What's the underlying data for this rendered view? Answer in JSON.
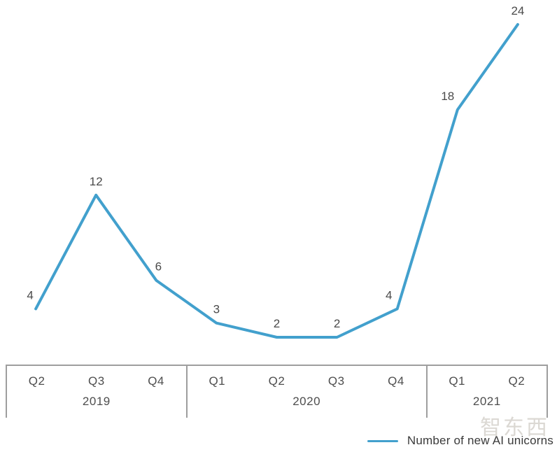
{
  "chart_data": {
    "type": "line",
    "title": "",
    "categories": [
      "Q2",
      "Q3",
      "Q4",
      "Q1",
      "Q2",
      "Q3",
      "Q4",
      "Q1",
      "Q2"
    ],
    "years": [
      {
        "label": "2019",
        "quarters": [
          "Q2",
          "Q3",
          "Q4"
        ]
      },
      {
        "label": "2020",
        "quarters": [
          "Q1",
          "Q2",
          "Q3",
          "Q4"
        ]
      },
      {
        "label": "2021",
        "quarters": [
          "Q1",
          "Q2"
        ]
      }
    ],
    "series": [
      {
        "name": "Number of new AI unicorns",
        "values": [
          4,
          12,
          6,
          3,
          2,
          2,
          4,
          18,
          24
        ]
      }
    ],
    "ylim": [
      0,
      26
    ],
    "grid": false,
    "data_labels_shown": true,
    "legend_position": "bottom-right",
    "line_color": "#42a0cd"
  },
  "colors": {
    "line": "#42a0cd",
    "point_label_text": "#4a4a4a",
    "axis_border": "#9e9e9e",
    "axis_text": "#4e4e4e",
    "legend_text": "#3a3a3a",
    "watermark": "#c9c4bd"
  },
  "legend": {
    "label": "Number of new AI unicorns"
  },
  "watermark": {
    "text": "智东西"
  }
}
